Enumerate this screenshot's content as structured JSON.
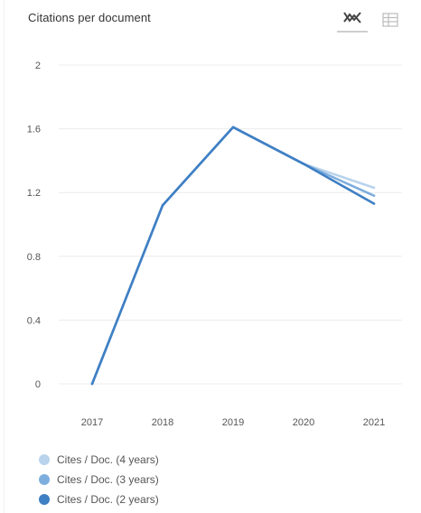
{
  "header": {
    "title": "Citations per document",
    "line_icon": "line-chart-icon",
    "table_icon": "table-icon"
  },
  "chart_data": {
    "type": "line",
    "title": "Citations per document",
    "x": [
      "2017",
      "2018",
      "2019",
      "2020",
      "2021"
    ],
    "yticks": [
      "0",
      "0.4",
      "0.8",
      "1.2",
      "1.6",
      "2"
    ],
    "ylim": [
      0,
      2
    ],
    "grid": true,
    "legend_position": "bottom-left",
    "series": [
      {
        "name": "Cites / Doc. (4 years)",
        "color": "#b9d3ec",
        "values": [
          0,
          1.12,
          1.61,
          1.38,
          1.23
        ]
      },
      {
        "name": "Cites / Doc. (3 years)",
        "color": "#7eaedd",
        "values": [
          0,
          1.12,
          1.61,
          1.38,
          1.18
        ]
      },
      {
        "name": "Cites / Doc. (2 years)",
        "color": "#3f7fc4",
        "values": [
          0,
          1.12,
          1.61,
          1.38,
          1.13
        ]
      }
    ]
  }
}
